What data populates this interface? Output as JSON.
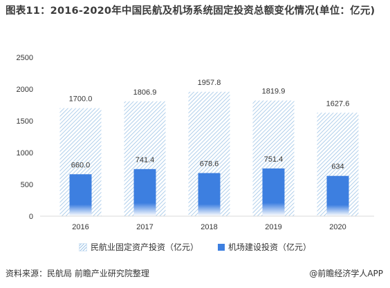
{
  "title": "图表11：2016-2020年中国民航及机场系统固定投资总额变化情况(单位：亿元)",
  "source_text": "资料来源：民航局 前瞻产业研究院整理",
  "brand_text": "@前瞻经济学人APP",
  "colors": {
    "hatch": "#9cc3e6",
    "solid_top": "#3d7fe0",
    "solid_bottom": "#ffffff",
    "axis_text": "#333333",
    "grid": "#d9d9d9"
  },
  "chart_data": {
    "type": "bar",
    "categories": [
      "2016",
      "2017",
      "2018",
      "2019",
      "2020"
    ],
    "series": [
      {
        "name": "民航业固定资产投资（亿元）",
        "values": [
          1700.0,
          1806.9,
          1957.8,
          1819.9,
          1627.6
        ],
        "labels": [
          "1700.0",
          "1806.9",
          "1957.8",
          "1819.9",
          "1627.6"
        ],
        "style": "hatched"
      },
      {
        "name": "机场建设投资（亿元）",
        "values": [
          660.0,
          741.4,
          678.6,
          751.4,
          634
        ],
        "labels": [
          "660.0",
          "741.4",
          "678.6",
          "751.4",
          "634"
        ],
        "style": "solid-gradient"
      }
    ],
    "ylim": [
      0,
      2500
    ],
    "yticks": [
      "0",
      "500",
      "1000",
      "1500",
      "2000",
      "2500"
    ],
    "xlabel": "",
    "ylabel": "",
    "grid": false,
    "legend_position": "bottom"
  }
}
